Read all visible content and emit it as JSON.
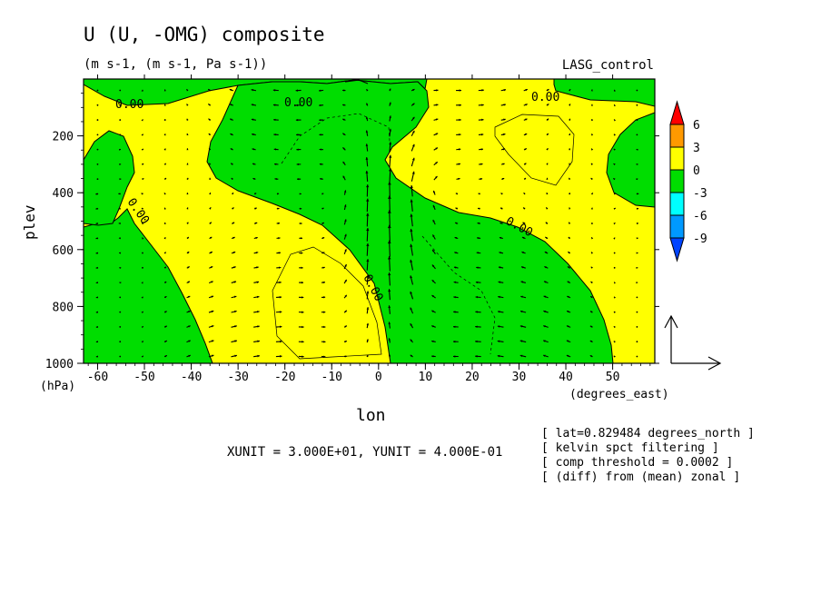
{
  "title": "U (U, -OMG) composite",
  "subtitle": "(m s-1, (m s-1, Pa s-1))",
  "run_label": "LASG_control",
  "chart_data": {
    "type": "heatmap",
    "xlabel": "lon",
    "xunit": "(degrees_east)",
    "ylabel": "plev",
    "yunit": "(hPa)",
    "xlim": [
      -63,
      59
    ],
    "ylim": [
      1000,
      0
    ],
    "x_ticks": [
      -60,
      -50,
      -40,
      -30,
      -20,
      -10,
      0,
      10,
      20,
      30,
      40,
      50
    ],
    "y_ticks": [
      200,
      400,
      600,
      800,
      1000
    ],
    "colorbar": {
      "levels": [
        6,
        3,
        0,
        -3,
        -6,
        -9
      ],
      "colors": [
        "#ff0000",
        "#ff9900",
        "#ffff00",
        "#00dd00",
        "#00ffff",
        "#0099ff",
        "#0044ff"
      ]
    },
    "fill_positive": "#ffff00",
    "fill_negative": "#00dd00",
    "contour_labels": [
      "0.00",
      "0.00",
      "0.00",
      "0.00",
      "0.00",
      "0.00"
    ],
    "negative_regions": [
      {
        "lon": [
          -63,
          -53
        ],
        "plev_range": [
          180,
          420
        ]
      },
      {
        "lon": [
          -60,
          -35
        ],
        "plev_range": [
          500,
          1000
        ]
      },
      {
        "lon": [
          -35,
          50
        ],
        "plev_range": [
          30,
          1000
        ]
      },
      {
        "lon": [
          48,
          59
        ],
        "plev_range": [
          150,
          440
        ]
      }
    ],
    "vector_unit_arrow": {
      "xunit": "XUNIT = 3.000E+01",
      "yunit": "YUNIT = 4.000E-01"
    }
  },
  "unit_text": "XUNIT = 3.000E+01, YUNIT = 4.000E-01",
  "info_lines": [
    "[ lat=0.829484 degrees_north ]",
    "[ kelvin spct filtering ]",
    "[ comp threshold = 0.0002 ]",
    "[ (diff) from (mean) zonal ]"
  ]
}
